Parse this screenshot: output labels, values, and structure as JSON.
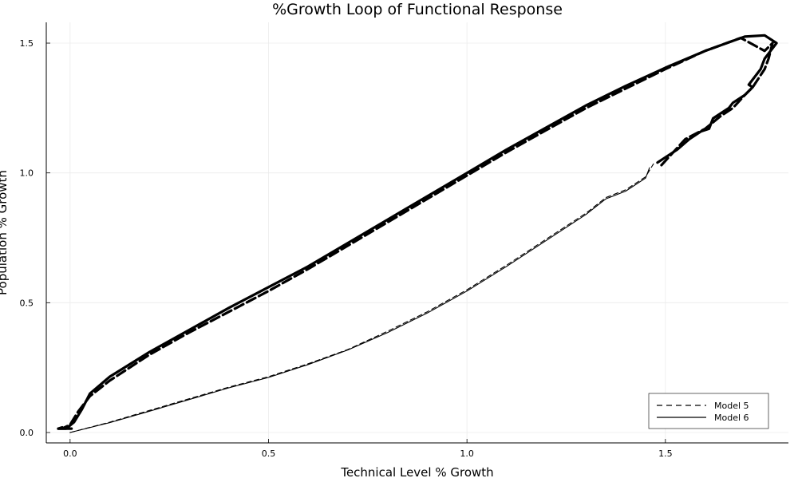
{
  "chart_data": {
    "type": "line",
    "title": "%Growth Loop of Functional Response",
    "xlabel": "Technical Level % Growth",
    "ylabel": "Population % Growth",
    "xlim": [
      -0.06,
      1.81
    ],
    "ylim": [
      -0.04,
      1.58
    ],
    "grid": true,
    "legend_placement": "bottom-right",
    "x_ticks": [
      0.0,
      0.5,
      1.0,
      1.5
    ],
    "x_tick_labels": [
      "0.0",
      "0.5",
      "1.0",
      "1.5"
    ],
    "y_ticks": [
      0.0,
      0.5,
      1.0,
      1.5
    ],
    "y_tick_labels": [
      "0.0",
      "0.5",
      "1.0",
      "1.5"
    ],
    "colors": {
      "line": "#000000",
      "grid": "#ebebeb",
      "axis": "#000000"
    },
    "series": [
      {
        "name": "Model 5",
        "style": "dashed",
        "segments": [
          {
            "weight": "thin",
            "x": [
              0.0,
              0.1,
              0.2,
              0.3,
              0.4,
              0.5,
              0.6,
              0.7,
              0.8,
              0.9,
              1.0,
              1.1,
              1.2,
              1.3,
              1.35,
              1.4,
              1.45,
              1.47
            ],
            "y": [
              0.0,
              0.04,
              0.085,
              0.13,
              0.175,
              0.215,
              0.265,
              0.32,
              0.39,
              0.465,
              0.55,
              0.645,
              0.745,
              0.845,
              0.905,
              0.935,
              0.985,
              1.035
            ]
          },
          {
            "weight": "thick",
            "x": [
              1.49,
              1.55,
              1.6,
              1.64,
              1.67,
              1.7,
              1.72,
              1.75,
              1.76,
              1.77,
              1.75,
              1.69,
              1.6,
              1.5,
              1.4,
              1.3,
              1.2,
              1.1,
              1.0,
              0.9,
              0.8,
              0.7,
              0.6,
              0.5,
              0.4,
              0.3,
              0.2,
              0.1,
              0.05,
              0.02,
              0.0,
              -0.02,
              -0.03,
              -0.01,
              0.01
            ],
            "y": [
              1.03,
              1.13,
              1.17,
              1.22,
              1.25,
              1.3,
              1.33,
              1.4,
              1.44,
              1.5,
              1.47,
              1.52,
              1.47,
              1.4,
              1.325,
              1.25,
              1.165,
              1.08,
              0.99,
              0.9,
              0.81,
              0.72,
              0.63,
              0.545,
              0.465,
              0.385,
              0.3,
              0.2,
              0.14,
              0.08,
              0.03,
              0.015,
              0.015,
              0.015,
              0.015
            ]
          }
        ]
      },
      {
        "name": "Model 6",
        "style": "solid",
        "segments": [
          {
            "weight": "thin",
            "x": [
              0.0,
              0.1,
              0.2,
              0.3,
              0.4,
              0.5,
              0.6,
              0.7,
              0.8,
              0.9,
              1.0,
              1.1,
              1.2,
              1.3,
              1.35,
              1.4,
              1.45,
              1.46
            ],
            "y": [
              0.0,
              0.038,
              0.082,
              0.127,
              0.172,
              0.212,
              0.262,
              0.318,
              0.385,
              0.46,
              0.545,
              0.64,
              0.74,
              0.84,
              0.9,
              0.93,
              0.98,
              1.02
            ]
          },
          {
            "weight": "thick",
            "x": [
              1.48,
              1.53,
              1.56,
              1.59,
              1.61,
              1.62,
              1.66,
              1.67,
              1.7,
              1.72,
              1.71,
              1.74,
              1.75,
              1.78,
              1.75,
              1.7,
              1.6,
              1.5,
              1.4,
              1.3,
              1.2,
              1.1,
              1.0,
              0.9,
              0.8,
              0.7,
              0.6,
              0.5,
              0.4,
              0.3,
              0.2,
              0.1,
              0.05,
              0.03,
              0.01,
              -0.01,
              -0.03,
              -0.02
            ],
            "y": [
              1.04,
              1.09,
              1.13,
              1.16,
              1.17,
              1.21,
              1.25,
              1.27,
              1.3,
              1.33,
              1.34,
              1.4,
              1.44,
              1.5,
              1.53,
              1.525,
              1.47,
              1.405,
              1.335,
              1.26,
              1.175,
              1.09,
              1.0,
              0.91,
              0.82,
              0.73,
              0.64,
              0.56,
              0.48,
              0.395,
              0.31,
              0.215,
              0.15,
              0.09,
              0.04,
              0.015,
              0.015,
              0.02
            ]
          }
        ]
      }
    ]
  }
}
